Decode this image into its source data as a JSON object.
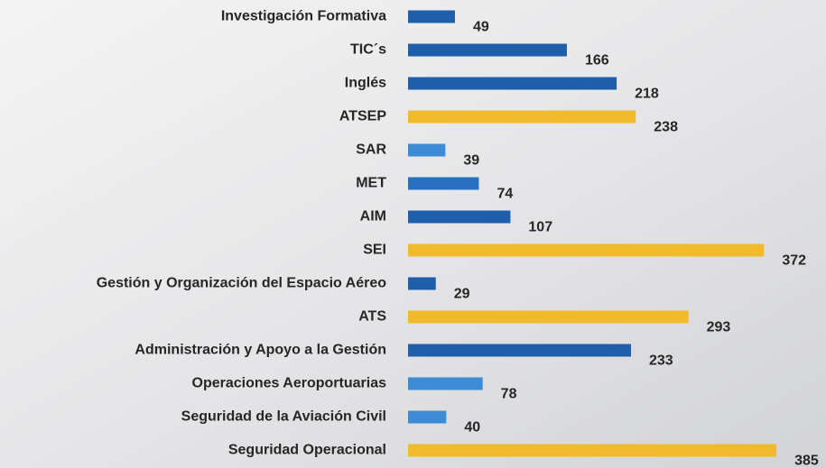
{
  "chart_data": {
    "type": "bar",
    "orientation": "horizontal",
    "categories": [
      "Investigación Formativa",
      "TIC´s",
      "Inglés",
      "ATSEP",
      "SAR",
      "MET",
      "AIM",
      "SEI",
      "Gestión y Organización del Espacio Aéreo",
      "ATS",
      "Administración y Apoyo a la Gestión",
      "Operaciones Aeroportuarias",
      "Seguridad de la Aviación Civil",
      "Seguridad Operacional"
    ],
    "values": [
      49,
      166,
      218,
      238,
      39,
      74,
      107,
      372,
      29,
      293,
      233,
      78,
      40,
      385
    ],
    "colors": [
      "#1e5eaa",
      "#1e5eaa",
      "#1e5eaa",
      "#f0ba2c",
      "#3b8bd6",
      "#2a70c0",
      "#1e5eaa",
      "#f0ba2c",
      "#1e5eaa",
      "#f0ba2c",
      "#1e5eaa",
      "#3b8bd6",
      "#3b8bd6",
      "#f0ba2c"
    ],
    "xlim": [
      0,
      400
    ]
  }
}
